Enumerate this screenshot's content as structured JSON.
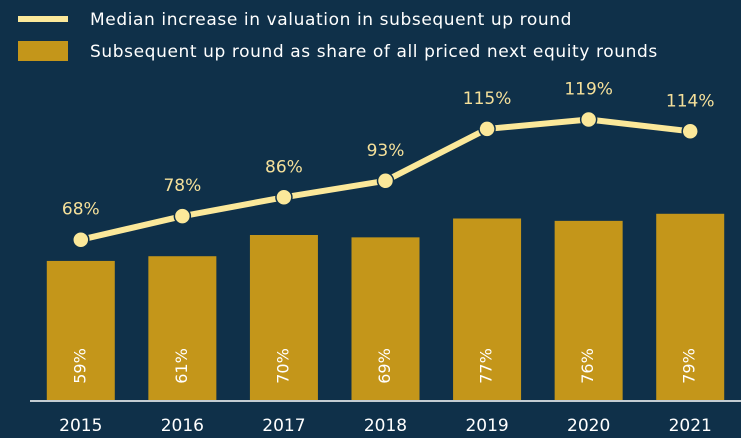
{
  "chart_data": {
    "type": "bar",
    "categories": [
      "2015",
      "2016",
      "2017",
      "2018",
      "2019",
      "2020",
      "2021"
    ],
    "series": [
      {
        "name": "Median increase in valuation in subsequent up round",
        "type": "line",
        "color": "#fbe89a",
        "values": [
          68,
          78,
          86,
          93,
          115,
          119,
          114
        ],
        "value_labels": [
          "68%",
          "78%",
          "86%",
          "93%",
          "115%",
          "119%",
          "114%"
        ]
      },
      {
        "name": "Subsequent up round as share of all priced next equity rounds",
        "type": "bar",
        "color": "#c4961a",
        "values": [
          59,
          61,
          70,
          69,
          77,
          76,
          79
        ],
        "value_labels": [
          "59%",
          "61%",
          "70%",
          "69%",
          "77%",
          "76%",
          "79%"
        ]
      }
    ],
    "ylim": [
      0,
      140
    ],
    "grid": false
  }
}
